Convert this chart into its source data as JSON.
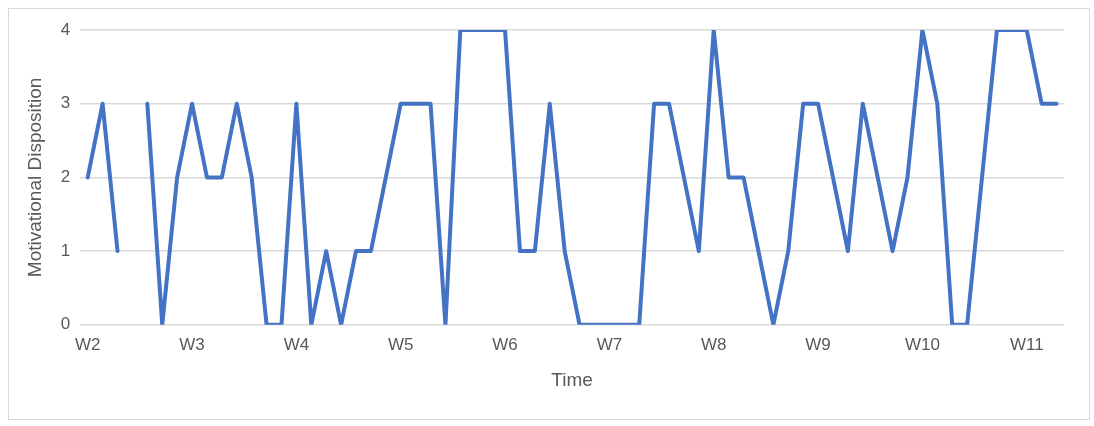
{
  "chart_data": {
    "type": "line",
    "xlabel": "Time",
    "ylabel": "Motivational Disposition",
    "categories": [
      "W2",
      null,
      null,
      null,
      null,
      null,
      null,
      "W3",
      null,
      null,
      null,
      null,
      null,
      null,
      "W4",
      null,
      null,
      null,
      null,
      null,
      null,
      "W5",
      null,
      null,
      null,
      null,
      null,
      null,
      "W6",
      null,
      null,
      null,
      null,
      null,
      null,
      "W7",
      null,
      null,
      null,
      null,
      null,
      null,
      "W8",
      null,
      null,
      null,
      null,
      null,
      null,
      "W9",
      null,
      null,
      null,
      null,
      null,
      null,
      "W10",
      null,
      null,
      null,
      null,
      null,
      null,
      "W11",
      null,
      null
    ],
    "series": [
      {
        "color": "#4472c4",
        "values": [
          2,
          3,
          1,
          null,
          3,
          0,
          2,
          3,
          2,
          2,
          3,
          2,
          0,
          0,
          3,
          0,
          1,
          0,
          1,
          1,
          2,
          3,
          3,
          3,
          0,
          4,
          4,
          4,
          4,
          1,
          1,
          3,
          1,
          0,
          0,
          0,
          0,
          0,
          3,
          3,
          2,
          1,
          4,
          2,
          2,
          1,
          0,
          1,
          3,
          3,
          2,
          1,
          3,
          2,
          1,
          2,
          4,
          3,
          0,
          0,
          2,
          4,
          4,
          4,
          3,
          3
        ]
      }
    ],
    "ylim": [
      0,
      4
    ],
    "yticks": [
      0,
      1,
      2,
      3,
      4
    ],
    "grid": "y",
    "legend": false,
    "marker": "none",
    "line_style": "solid"
  }
}
